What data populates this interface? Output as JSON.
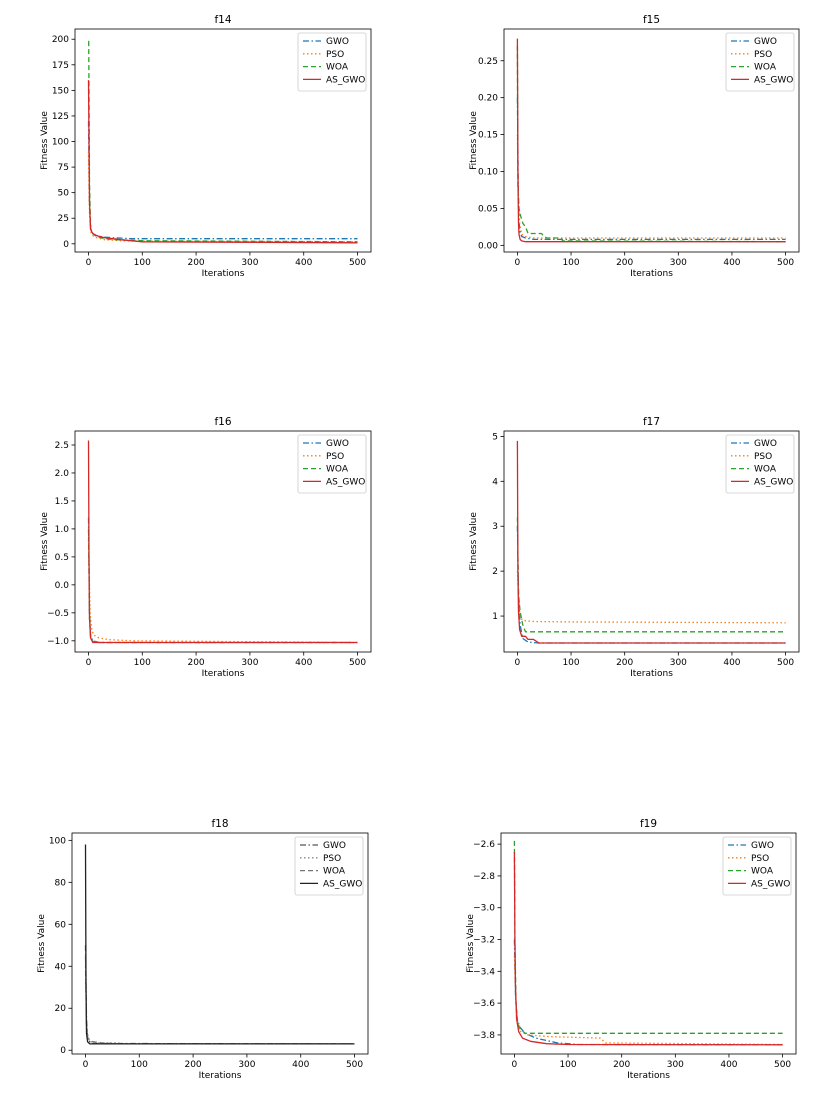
{
  "chart_data": [
    {
      "type": "line",
      "title": "f14",
      "xlabel": "Iterations",
      "ylabel": "Fitness Value",
      "xlim": [
        -25,
        525
      ],
      "ylim": [
        -8,
        210
      ],
      "xticks": [
        0,
        100,
        200,
        300,
        400,
        500
      ],
      "yticks": [
        0,
        25,
        50,
        75,
        100,
        125,
        150,
        175,
        200
      ],
      "ytick_labels": [
        "0",
        "25",
        "50",
        "75",
        "100",
        "125",
        "150",
        "175",
        "200"
      ],
      "legend": "top-right",
      "series": [
        {
          "name": "GWO",
          "color": "#1f77b4",
          "dash": "dashdot",
          "x": [
            0,
            2,
            4,
            8,
            15,
            30,
            50,
            80,
            500
          ],
          "y": [
            120,
            40,
            15,
            10,
            8,
            6.5,
            5.8,
            5,
            5
          ]
        },
        {
          "name": "PSO",
          "color": "#ff7f0e",
          "dash": "dotted",
          "x": [
            0,
            2,
            4,
            8,
            15,
            30,
            60,
            100,
            500
          ],
          "y": [
            90,
            30,
            12,
            8,
            6,
            4,
            3,
            2.5,
            2
          ]
        },
        {
          "name": "WOA",
          "color": "#2ca02c",
          "dash": "dashed",
          "x": [
            0,
            0.5,
            1,
            2,
            4,
            8,
            15,
            30,
            50,
            100,
            500
          ],
          "y": [
            198,
            198,
            150,
            60,
            15,
            10,
            7,
            5,
            4,
            3,
            2
          ]
        },
        {
          "name": "AS_GWO",
          "color": "#d62728",
          "dash": "solid",
          "x": [
            0,
            1,
            2,
            4,
            8,
            15,
            30,
            60,
            100,
            500
          ],
          "y": [
            160,
            100,
            40,
            14,
            10,
            8,
            6,
            4,
            2,
            1
          ]
        }
      ]
    },
    {
      "type": "line",
      "title": "f15",
      "xlabel": "Iterations",
      "ylabel": "Fitness Value",
      "xlim": [
        -25,
        525
      ],
      "ylim": [
        -0.009,
        0.293
      ],
      "xticks": [
        0,
        100,
        200,
        300,
        400,
        500
      ],
      "yticks": [
        0,
        0.05,
        0.1,
        0.15,
        0.2,
        0.25
      ],
      "ytick_labels": [
        "0.00",
        "0.05",
        "0.10",
        "0.15",
        "0.20",
        "0.25"
      ],
      "legend": "top-right",
      "series": [
        {
          "name": "GWO",
          "color": "#1f77b4",
          "dash": "dashdot",
          "x": [
            0,
            2,
            4,
            8,
            15,
            30,
            500
          ],
          "y": [
            0.2,
            0.05,
            0.02,
            0.012,
            0.01,
            0.008,
            0.008
          ]
        },
        {
          "name": "PSO",
          "color": "#ff7f0e",
          "dash": "dotted",
          "x": [
            0,
            2,
            4,
            8,
            15,
            30,
            500
          ],
          "y": [
            0.15,
            0.06,
            0.03,
            0.015,
            0.012,
            0.01,
            0.01
          ]
        },
        {
          "name": "WOA",
          "color": "#2ca02c",
          "dash": "dashed",
          "x": [
            0,
            1,
            3,
            6,
            10,
            15,
            20,
            45,
            50,
            55,
            80,
            85,
            500
          ],
          "y": [
            0.27,
            0.08,
            0.05,
            0.04,
            0.03,
            0.025,
            0.016,
            0.016,
            0.012,
            0.01,
            0.01,
            0.006,
            0.005
          ]
        },
        {
          "name": "AS_GWO",
          "color": "#d62728",
          "dash": "solid",
          "x": [
            0,
            1,
            2,
            3,
            5,
            8,
            15,
            500
          ],
          "y": [
            0.28,
            0.1,
            0.03,
            0.015,
            0.008,
            0.006,
            0.005,
            0.005
          ]
        }
      ]
    },
    {
      "type": "line",
      "title": "f16",
      "xlabel": "Iterations",
      "ylabel": "Fitness Value",
      "xlim": [
        -25,
        525
      ],
      "ylim": [
        -1.2,
        2.75
      ],
      "xticks": [
        0,
        100,
        200,
        300,
        400,
        500
      ],
      "yticks": [
        -1,
        -0.5,
        0,
        0.5,
        1,
        1.5,
        2,
        2.5
      ],
      "ytick_labels": [
        "−1.0",
        "−0.5",
        "0.0",
        "0.5",
        "1.0",
        "1.5",
        "2.0",
        "2.5"
      ],
      "legend": "top-right",
      "series": [
        {
          "name": "GWO",
          "color": "#1f77b4",
          "dash": "dashdot",
          "x": [
            0,
            2,
            4,
            8,
            20,
            500
          ],
          "y": [
            1.2,
            -0.5,
            -0.9,
            -1.0,
            -1.03,
            -1.03
          ]
        },
        {
          "name": "PSO",
          "color": "#ff7f0e",
          "dash": "dotted",
          "x": [
            0,
            3,
            6,
            10,
            20,
            40,
            80,
            500
          ],
          "y": [
            0.8,
            -0.5,
            -0.8,
            -0.9,
            -0.95,
            -0.98,
            -1.0,
            -1.03
          ]
        },
        {
          "name": "WOA",
          "color": "#2ca02c",
          "dash": "dashed",
          "x": [
            0,
            2,
            4,
            8,
            20,
            500
          ],
          "y": [
            1.0,
            -0.6,
            -0.95,
            -1.01,
            -1.03,
            -1.03
          ]
        },
        {
          "name": "AS_GWO",
          "color": "#d62728",
          "dash": "solid",
          "x": [
            0,
            1,
            2,
            4,
            8,
            500
          ],
          "y": [
            2.58,
            0.5,
            -0.6,
            -0.95,
            -1.03,
            -1.03
          ]
        }
      ]
    },
    {
      "type": "line",
      "title": "f17",
      "xlabel": "Iterations",
      "ylabel": "Fitness Value",
      "xlim": [
        -25,
        525
      ],
      "ylim": [
        0.2,
        5.12
      ],
      "xticks": [
        0,
        100,
        200,
        300,
        400,
        500
      ],
      "yticks": [
        1,
        2,
        3,
        4,
        5
      ],
      "ytick_labels": [
        "1",
        "2",
        "3",
        "4",
        "5"
      ],
      "legend": "top-right",
      "series": [
        {
          "name": "GWO",
          "color": "#1f77b4",
          "dash": "dashdot",
          "x": [
            0,
            2,
            5,
            10,
            20,
            40,
            500
          ],
          "y": [
            3.0,
            1.5,
            0.8,
            0.5,
            0.42,
            0.4,
            0.4
          ]
        },
        {
          "name": "PSO",
          "color": "#ff7f0e",
          "dash": "dotted",
          "x": [
            0,
            3,
            6,
            12,
            30,
            100,
            500
          ],
          "y": [
            2.0,
            1.2,
            0.95,
            0.9,
            0.88,
            0.87,
            0.85
          ]
        },
        {
          "name": "WOA",
          "color": "#2ca02c",
          "dash": "dashed",
          "x": [
            0,
            2,
            5,
            10,
            15,
            500
          ],
          "y": [
            3.2,
            1.5,
            1.1,
            0.8,
            0.65,
            0.65
          ]
        },
        {
          "name": "AS_GWO",
          "color": "#d62728",
          "dash": "solid",
          "x": [
            0,
            1,
            2,
            4,
            8,
            15,
            20,
            30,
            40,
            500
          ],
          "y": [
            4.9,
            2.0,
            1.1,
            0.7,
            0.55,
            0.55,
            0.48,
            0.48,
            0.4,
            0.4
          ]
        }
      ]
    },
    {
      "type": "line",
      "title": "f18",
      "xlabel": "Iterations",
      "ylabel": "Fitness Value",
      "xlim": [
        -25,
        525
      ],
      "ylim": [
        -1.8,
        103.5
      ],
      "xticks": [
        0,
        100,
        200,
        300,
        400,
        500
      ],
      "yticks": [
        0,
        20,
        40,
        60,
        80,
        100
      ],
      "ytick_labels": [
        "0",
        "20",
        "40",
        "60",
        "80",
        "100"
      ],
      "legend": "top-right",
      "series": [
        {
          "name": "GWO",
          "color": "#555555",
          "dash": "dashdot",
          "x": [
            0,
            2,
            4,
            8,
            15,
            500
          ],
          "y": [
            50,
            15,
            6,
            4,
            3.2,
            3
          ]
        },
        {
          "name": "PSO",
          "color": "#888888",
          "dash": "dotted",
          "x": [
            0,
            2,
            5,
            10,
            20,
            60,
            70,
            500
          ],
          "y": [
            40,
            12,
            6,
            4,
            3.5,
            3.5,
            3,
            3
          ]
        },
        {
          "name": "WOA",
          "color": "#777777",
          "dash": "dashed",
          "x": [
            0,
            2,
            4,
            8,
            15,
            30,
            60,
            500
          ],
          "y": [
            45,
            12,
            6,
            4.5,
            4,
            3.5,
            3,
            3
          ]
        },
        {
          "name": "AS_GWO",
          "color": "#222222",
          "dash": "solid",
          "x": [
            0,
            1,
            2,
            4,
            8,
            500
          ],
          "y": [
            98,
            30,
            8,
            4,
            3,
            3
          ]
        }
      ]
    },
    {
      "type": "line",
      "title": "f19",
      "xlabel": "Iterations",
      "ylabel": "Fitness Value",
      "xlim": [
        -25,
        525
      ],
      "ylim": [
        -3.92,
        -2.53
      ],
      "xticks": [
        0,
        100,
        200,
        300,
        400,
        500
      ],
      "yticks": [
        -3.8,
        -3.6,
        -3.4,
        -3.2,
        -3.0,
        -2.8,
        -2.6
      ],
      "ytick_labels": [
        "−3.8",
        "−3.6",
        "−3.4",
        "−3.2",
        "−3.0",
        "−2.8",
        "−2.6"
      ],
      "legend": "top-right",
      "series": [
        {
          "name": "GWO",
          "color": "#1f77b4",
          "dash": "dashdot",
          "x": [
            0,
            2,
            5,
            10,
            20,
            40,
            80,
            120,
            500
          ],
          "y": [
            -3.2,
            -3.55,
            -3.7,
            -3.75,
            -3.79,
            -3.82,
            -3.85,
            -3.86,
            -3.862
          ]
        },
        {
          "name": "PSO",
          "color": "#ff7f0e",
          "dash": "dotted",
          "x": [
            0,
            3,
            6,
            12,
            25,
            60,
            160,
            170,
            500
          ],
          "y": [
            -3.3,
            -3.6,
            -3.72,
            -3.78,
            -3.8,
            -3.81,
            -3.82,
            -3.85,
            -3.86
          ]
        },
        {
          "name": "WOA",
          "color": "#2ca02c",
          "dash": "dashed",
          "x": [
            0,
            1,
            3,
            6,
            10,
            20,
            500
          ],
          "y": [
            -2.58,
            -3.2,
            -3.6,
            -3.72,
            -3.76,
            -3.79,
            -3.79
          ]
        },
        {
          "name": "AS_GWO",
          "color": "#d62728",
          "dash": "solid",
          "x": [
            0,
            1,
            2,
            4,
            8,
            15,
            30,
            60,
            100,
            500
          ],
          "y": [
            -2.65,
            -3.2,
            -3.5,
            -3.7,
            -3.78,
            -3.82,
            -3.84,
            -3.855,
            -3.86,
            -3.862
          ]
        }
      ]
    }
  ]
}
